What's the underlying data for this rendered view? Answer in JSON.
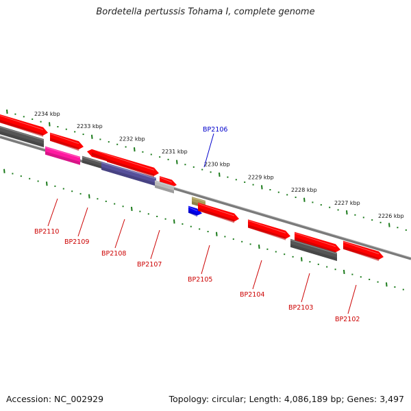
{
  "title": "Bordetella pertussis Tohama I, complete genome",
  "accession": "Accession: NC_002929",
  "topology": "Topology: circular; Length: 4,086,189 bp; Genes: 3,497",
  "colors": {
    "backbone": "#7a7a7a",
    "scale_tick": "#1a7a1a",
    "label_red": "#cc0000",
    "label_blue": "#0000cc",
    "gene_red": "#ff0000",
    "gene_gray": "#555555",
    "gene_magenta": "#ff1aa0",
    "gene_purple": "#554f9a",
    "gene_lightgray": "#b9b9b9",
    "gene_blue": "#0000ee",
    "gene_khaki": "#a89a55"
  },
  "scale": {
    "unit": "kbp",
    "labels": [
      "2234 kbp",
      "2233 kbp",
      "2232 kbp",
      "2231 kbp",
      "2230 kbp",
      "2229 kbp",
      "2228 kbp",
      "2227 kbp",
      "2226 kbp"
    ]
  },
  "gene_labels": [
    {
      "name": "BP2106",
      "color": "blue"
    },
    {
      "name": "BP2110",
      "color": "red"
    },
    {
      "name": "BP2109",
      "color": "red"
    },
    {
      "name": "BP2108",
      "color": "red"
    },
    {
      "name": "BP2107",
      "color": "red"
    },
    {
      "name": "BP2105",
      "color": "red"
    },
    {
      "name": "BP2104",
      "color": "red"
    },
    {
      "name": "BP2103",
      "color": "red"
    },
    {
      "name": "BP2102",
      "color": "red"
    }
  ]
}
